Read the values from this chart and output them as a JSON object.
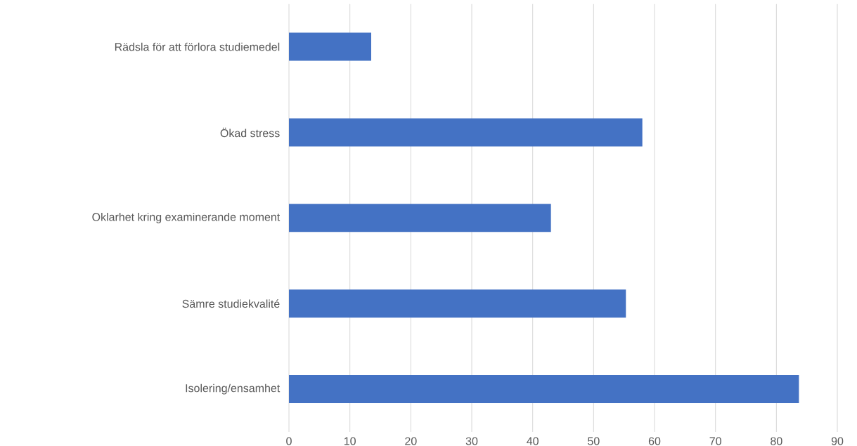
{
  "chart_data": {
    "type": "bar",
    "orientation": "horizontal",
    "categories": [
      "Rädsla för att förlora studiemedel",
      "Ökad stress",
      "Oklarhet kring examinerande moment",
      "Sämre studiekvalité",
      "Isolering/ensamhet"
    ],
    "values": [
      13.5,
      58,
      43,
      55.3,
      83.7
    ],
    "color": "#4472c4",
    "xlim": [
      0,
      90
    ],
    "xticks": [
      0,
      10,
      20,
      30,
      40,
      50,
      60,
      70,
      80,
      90
    ],
    "grid": "x"
  }
}
